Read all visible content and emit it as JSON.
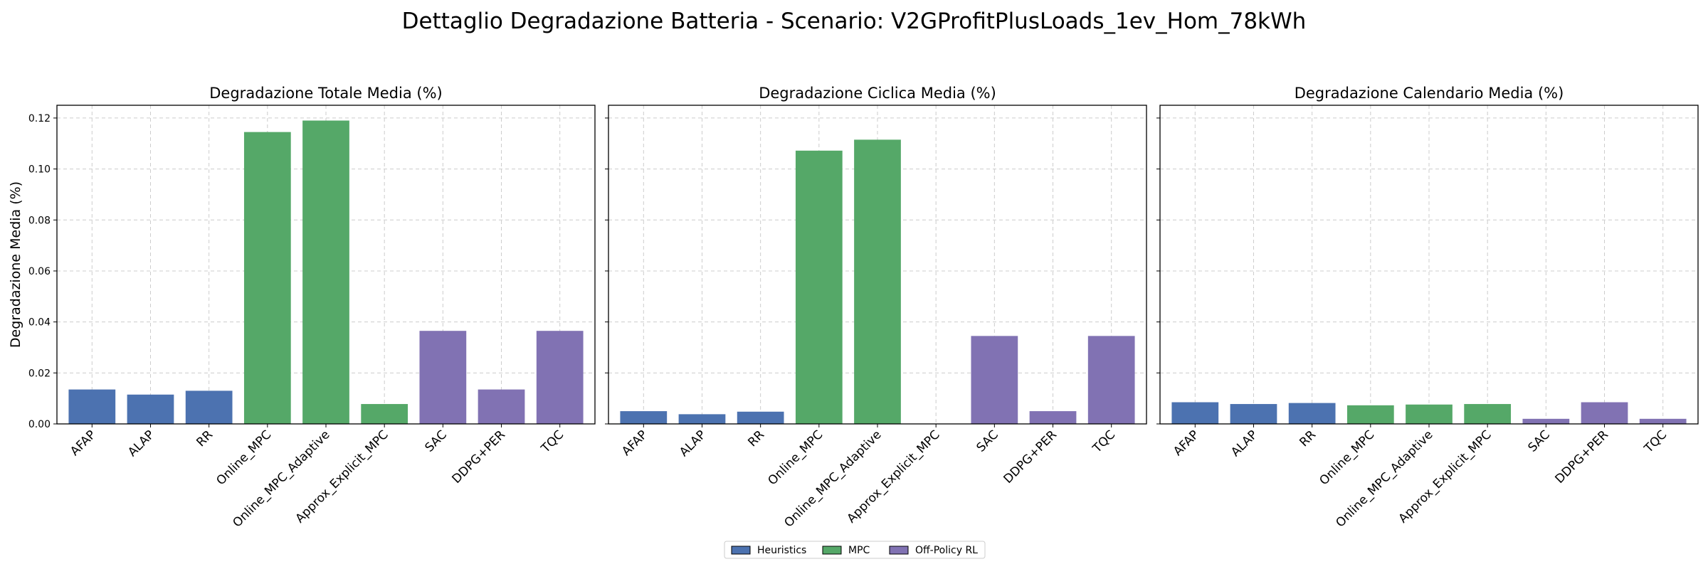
{
  "title": "Dettaglio Degradazione Batteria - Scenario: V2GProfitPlusLoads_1ev_Hom_78kWh",
  "colors": {
    "Heuristics": "#4c72b0",
    "MPC": "#55a868",
    "Off-Policy RL": "#8172b3"
  },
  "chart_data": [
    {
      "type": "bar",
      "title": "Degradazione Totale Media (%)",
      "ylabel": "Degradazione Media (%)",
      "categories": [
        "AFAP",
        "ALAP",
        "RR",
        "Online_MPC",
        "Online_MPC_Adaptive",
        "Approx_Explicit_MPC",
        "SAC",
        "DDPG+PER",
        "TQC"
      ],
      "groups": [
        "Heuristics",
        "Heuristics",
        "Heuristics",
        "MPC",
        "MPC",
        "MPC",
        "Off-Policy RL",
        "Off-Policy RL",
        "Off-Policy RL"
      ],
      "values": [
        0.0135,
        0.0115,
        0.013,
        0.1145,
        0.119,
        0.0078,
        0.0365,
        0.0135,
        0.0365
      ],
      "ylim": [
        0,
        0.125
      ],
      "yticks": [
        "0.00",
        "0.02",
        "0.04",
        "0.06",
        "0.08",
        "0.10",
        "0.12"
      ],
      "grid": true
    },
    {
      "type": "bar",
      "title": "Degradazione Ciclica Media (%)",
      "ylabel": "",
      "categories": [
        "AFAP",
        "ALAP",
        "RR",
        "Online_MPC",
        "Online_MPC_Adaptive",
        "Approx_Explicit_MPC",
        "SAC",
        "DDPG+PER",
        "TQC"
      ],
      "groups": [
        "Heuristics",
        "Heuristics",
        "Heuristics",
        "MPC",
        "MPC",
        "MPC",
        "Off-Policy RL",
        "Off-Policy RL",
        "Off-Policy RL"
      ],
      "values": [
        0.005,
        0.0038,
        0.0048,
        0.1072,
        0.1115,
        0.0,
        0.0345,
        0.005,
        0.0345
      ],
      "ylim": [
        0,
        0.125
      ],
      "grid": true
    },
    {
      "type": "bar",
      "title": "Degradazione Calendario Media (%)",
      "ylabel": "",
      "categories": [
        "AFAP",
        "ALAP",
        "RR",
        "Online_MPC",
        "Online_MPC_Adaptive",
        "Approx_Explicit_MPC",
        "SAC",
        "DDPG+PER",
        "TQC"
      ],
      "groups": [
        "Heuristics",
        "Heuristics",
        "Heuristics",
        "MPC",
        "MPC",
        "MPC",
        "Off-Policy RL",
        "Off-Policy RL",
        "Off-Policy RL"
      ],
      "values": [
        0.0085,
        0.0078,
        0.0082,
        0.0073,
        0.0076,
        0.0078,
        0.002,
        0.0085,
        0.002
      ],
      "ylim": [
        0,
        0.125
      ],
      "grid": true
    }
  ],
  "legend": {
    "placement": "bottom-center",
    "entries": [
      "Heuristics",
      "MPC",
      "Off-Policy RL"
    ]
  }
}
